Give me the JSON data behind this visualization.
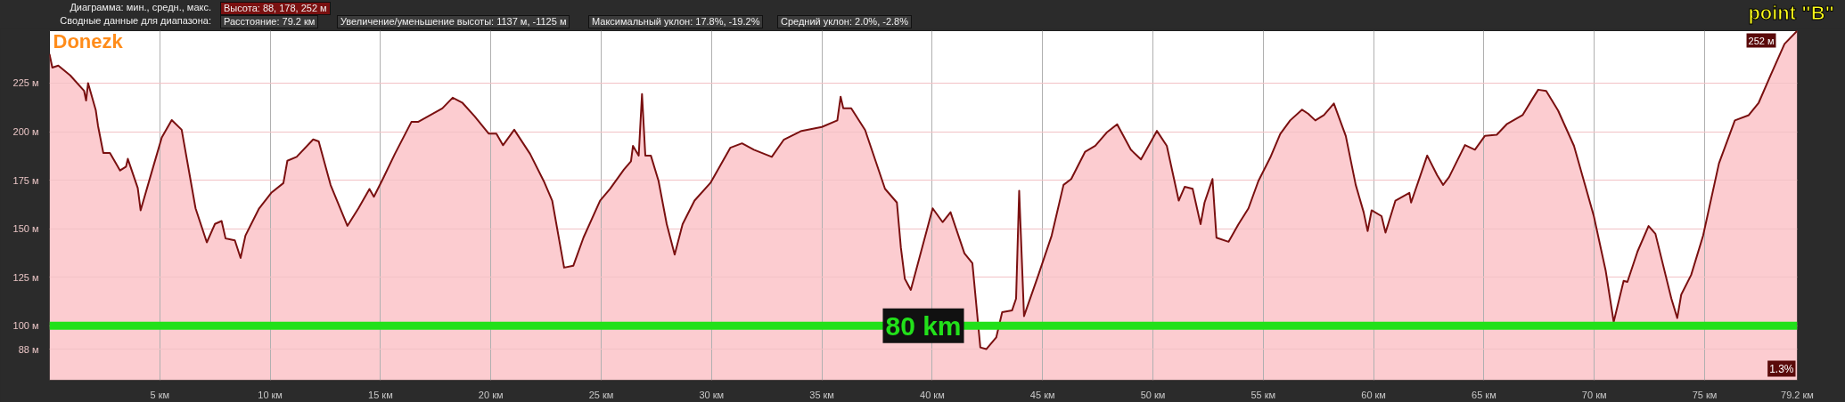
{
  "chart_data": {
    "type": "area",
    "annotations": [
      "Диаграмма: мин., средн., макс.",
      "Высота: 88, 178, 252 м",
      "Сводные данные для диапазона:",
      "Расстояние: 79.2 км",
      "Увеличение/уменьшение высоты: 1137 м, -1125 м",
      "Максимальный уклон: 17.8%, -19.2%",
      "Средний уклон: 2.0%, -2.8%",
      "point \"B\"",
      {
        "text": "Donezk",
        "x": 0,
        "y": 240
      },
      {
        "text": "252 м",
        "x": 79.2,
        "y": 252
      },
      "1.3%"
    ],
    "series": [
      {
        "color": "#7a1010",
        "x": [
          0,
          0.13,
          0.4,
          0.94,
          1.57,
          1.66,
          1.75,
          2.1,
          2.2,
          2.44,
          2.74,
          3.2,
          3.47,
          3.55,
          4.0,
          4.13,
          4.73,
          5.09,
          5.54,
          5.99,
          6.62,
          7.13,
          7.5,
          7.8,
          7.98,
          8.4,
          8.66,
          8.88,
          9.5,
          10.05,
          10.6,
          10.78,
          11.2,
          11.95,
          12.2,
          12.74,
          13.5,
          14.0,
          14.5,
          14.7,
          15.1,
          15.65,
          16.4,
          16.7,
          17.8,
          18.27,
          18.7,
          19.26,
          19.9,
          20.25,
          20.55,
          21.06,
          21.78,
          22.4,
          22.78,
          23.32,
          23.74,
          24.2,
          24.95,
          25.4,
          26.03,
          26.35,
          26.44,
          26.7,
          26.85,
          27.0,
          27.25,
          27.6,
          27.97,
          28.33,
          28.69,
          29.23,
          29.95,
          30.85,
          31.38,
          31.92,
          32.73,
          33.27,
          34.08,
          35.0,
          35.7,
          35.85,
          35.97,
          36.33,
          36.96,
          37.86,
          38.4,
          38.58,
          38.76,
          39.03,
          40.02,
          40.47,
          40.83,
          41.46,
          41.82,
          42.18,
          42.45,
          42.9,
          43.17,
          43.62,
          43.8,
          43.94,
          44.16,
          44.78,
          45.41,
          45.95,
          46.3,
          46.93,
          47.39,
          47.93,
          48.38,
          49.0,
          49.46,
          50.18,
          50.63,
          51.17,
          51.44,
          51.8,
          52.16,
          52.34,
          52.7,
          52.88,
          53.43,
          53.88,
          54.33,
          54.78,
          55.32,
          55.77,
          56.22,
          56.76,
          57.03,
          57.36,
          57.75,
          58.2,
          58.74,
          59.19,
          59.55,
          59.73,
          59.91,
          60.36,
          60.54,
          60.99,
          61.62,
          61.7,
          62.43,
          62.88,
          63.15,
          63.42,
          64.14,
          64.59,
          65.04,
          65.58,
          66.03,
          66.75,
          67.2,
          67.46,
          67.82,
          68.36,
          69.08,
          69.98,
          70.52,
          70.88,
          71.33,
          71.5,
          71.96,
          72.46,
          72.77,
          73.49,
          73.76,
          73.94,
          74.39,
          74.93,
          75.65,
          76.37,
          77.0,
          77.45,
          77.99,
          78.62,
          79.2
        ],
        "values": [
          240,
          233,
          234,
          229,
          221,
          216,
          225,
          211,
          203,
          189,
          189,
          180,
          182,
          186,
          171,
          159.5,
          183,
          197,
          206,
          201,
          160.5,
          143,
          152.5,
          154,
          145,
          144,
          135,
          146.5,
          160.5,
          168.5,
          173.5,
          185,
          187,
          196,
          195,
          172.5,
          151.5,
          160.5,
          170.5,
          166.5,
          175.5,
          188.5,
          205,
          205,
          212,
          217.5,
          215,
          208,
          199,
          199,
          193,
          201,
          188.5,
          174.5,
          164.5,
          130,
          131,
          145.5,
          164.5,
          170.5,
          180.5,
          184.7,
          192.7,
          187.7,
          219.4,
          187.7,
          187.7,
          174.6,
          152.4,
          136.7,
          152.4,
          164.5,
          173.6,
          191.7,
          194,
          190.7,
          187,
          195.8,
          200.4,
          202.4,
          205.8,
          218,
          212,
          212,
          200.8,
          170.6,
          163.5,
          140.3,
          124.2,
          118.5,
          160.5,
          153.4,
          158.5,
          137.3,
          132.3,
          88.9,
          88,
          94,
          107,
          108,
          114,
          169.6,
          105,
          125.2,
          146.4,
          172.6,
          175.6,
          189.7,
          192.7,
          199.8,
          203.8,
          190.7,
          185.7,
          200.4,
          192.7,
          164.5,
          171.6,
          170.6,
          152.4,
          163.5,
          175.6,
          145.4,
          143.3,
          152.4,
          160.5,
          174.6,
          186.7,
          198.8,
          205.8,
          211.3,
          209.3,
          205.8,
          208.5,
          214.5,
          197.8,
          172.6,
          158.5,
          148.8,
          159.5,
          156.5,
          148,
          164.5,
          168.5,
          163.5,
          187.7,
          177.6,
          172.6,
          176.6,
          193.1,
          190.7,
          197.8,
          198.4,
          203.8,
          208.5,
          216.9,
          221.6,
          221,
          210.9,
          192.7,
          156.5,
          128.2,
          102,
          123.2,
          122.6,
          138.3,
          151.4,
          147.4,
          114.1,
          104,
          116.1,
          126.2,
          146.4,
          183.7,
          205.8,
          208.5,
          214.9,
          229,
          245.2,
          252
        ]
      }
    ],
    "xlim": [
      0,
      79.2
    ],
    "xticks": [
      {
        "value": 5,
        "label": "5 км"
      },
      {
        "value": 10,
        "label": "10 км"
      },
      {
        "value": 15,
        "label": "15 км"
      },
      {
        "value": 20,
        "label": "20 км"
      },
      {
        "value": 25,
        "label": "25 км"
      },
      {
        "value": 30,
        "label": "30 км"
      },
      {
        "value": 35,
        "label": "35 км"
      },
      {
        "value": 40,
        "label": "40 км"
      },
      {
        "value": 45,
        "label": "45 км"
      },
      {
        "value": 50,
        "label": "50 км"
      },
      {
        "value": 55,
        "label": "55 км"
      },
      {
        "value": 60,
        "label": "60 км"
      },
      {
        "value": 65,
        "label": "65 км"
      },
      {
        "value": 70,
        "label": "70 км"
      },
      {
        "value": 75,
        "label": "75 км"
      },
      {
        "value": 79.2,
        "label": "79.2 км"
      }
    ],
    "ylim": [
      72,
      252
    ],
    "yticks": [
      {
        "value": 88,
        "label": "88 м"
      },
      {
        "value": 100,
        "label": "100 м"
      },
      {
        "value": 125,
        "label": "125 м"
      },
      {
        "value": 150,
        "label": "150 м"
      },
      {
        "value": 175,
        "label": "175 м"
      },
      {
        "value": 200,
        "label": "200 м"
      },
      {
        "value": 225,
        "label": "225 м"
      }
    ],
    "ref_lines": [
      {
        "axis": "y",
        "value": 100,
        "label": "80 km",
        "color": "#22e01a"
      }
    ],
    "grid": true
  }
}
